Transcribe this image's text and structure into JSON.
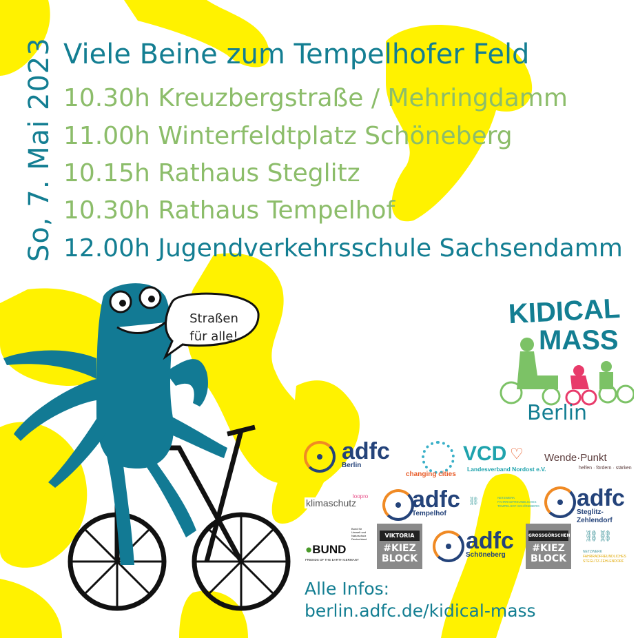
{
  "date": "So, 7. Mai 2023",
  "title": "Viele Beine zum Tempelhofer Feld",
  "stops": [
    "10.30h Kreuzbergstraße / Mehringdamm",
    "11.00h Winterfeldtplatz Schöneberg",
    "10.15h Rathaus Steglitz",
    "10.30h Rathaus Tempelhof",
    "12.00h Jugendverkehrsschule Sachsendamm"
  ],
  "speech_bubble": [
    "Straßen",
    "für alle!"
  ],
  "kidical_mass": {
    "line1": "KIDICAL",
    "line2": "MASS",
    "city": "Berlin"
  },
  "logos": {
    "adfc_berlin": {
      "name": "adfc",
      "sub": "Berlin"
    },
    "changing_cities": "changing cities",
    "vcd": {
      "name": "VCD",
      "sub": "Landesverband Nordost e.V."
    },
    "wende_punkt": {
      "name": "Wende·Punkt",
      "sub": "helfen · fördern · stärken"
    },
    "klimaschutz": {
      "name": "klimaschutz",
      "sup": "loopro"
    },
    "adfc_tempelhof": {
      "name": "adfc",
      "sub": "Tempelhof"
    },
    "netzwerk_ts": [
      "NETZWERK",
      "FAHRRADFREUNDLICHES",
      "TEMPELHOF-SCHÖNEBERG"
    ],
    "adfc_steglitz": {
      "name": "adfc",
      "sub": "Steglitz-Zehlendorf"
    },
    "bund": {
      "name": "BUND",
      "sub": "FRIENDS OF THE EARTH GERMANY",
      "side": "Bund für Umwelt und Naturschutz Deutschland"
    },
    "kiezblock_viktoria": {
      "tag": "VIKTORIA",
      "text": "#KIEZ BLOCK"
    },
    "adfc_schoeneberg": {
      "name": "adfc",
      "sub": "Schöneberg"
    },
    "kiezblock_gross": {
      "tag": "GROSSGÖRSCHEN",
      "text": "#KIEZ BLOCK"
    },
    "netzwerk_sz": [
      "NETZWERK",
      "FAHRRADFREUNDLICHES",
      "STEGLITZ-ZEHLENDORF"
    ]
  },
  "info": {
    "label": "Alle Infos:",
    "url": "berlin.adfc.de/kidical-mass"
  },
  "colors": {
    "teal": "#137e92",
    "green": "#8cbd6a",
    "yellow": "#fff200",
    "mascot": "#127a94",
    "adfc_blue": "#24437a",
    "adfc_orange": "#f08a24"
  }
}
